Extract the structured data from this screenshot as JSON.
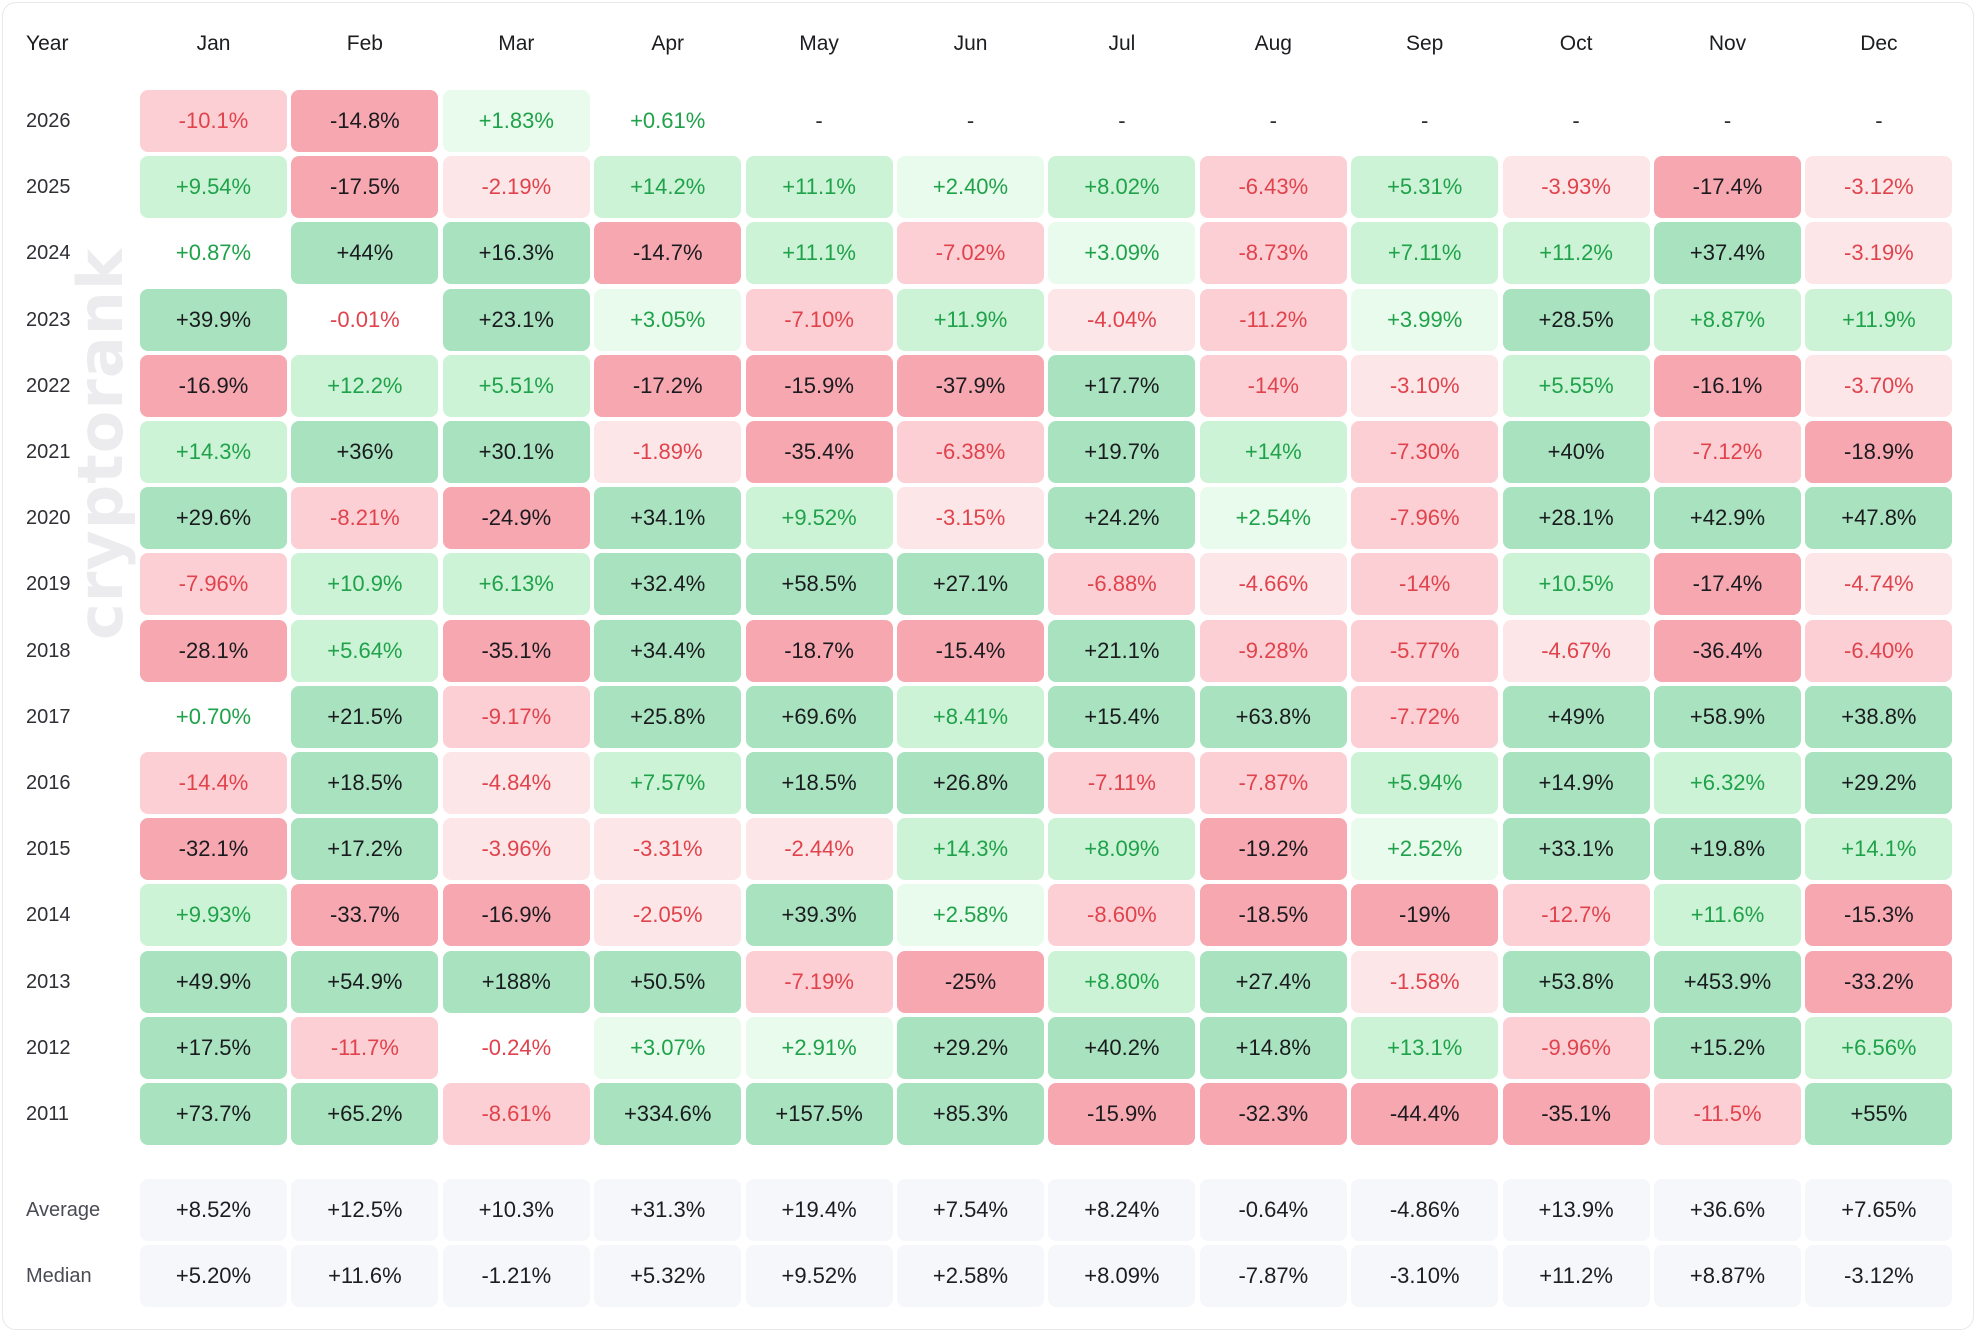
{
  "chart_data": {
    "type": "table",
    "header": {
      "year_label": "Year",
      "months": [
        "Jan",
        "Feb",
        "Mar",
        "Apr",
        "May",
        "Jun",
        "Jul",
        "Aug",
        "Sep",
        "Oct",
        "Nov",
        "Dec"
      ]
    },
    "rows": [
      {
        "year": "2026",
        "values": [
          "-10.1%",
          "-14.8%",
          "+1.83%",
          "+0.61%",
          "-",
          "-",
          "-",
          "-",
          "-",
          "-",
          "-",
          "-"
        ]
      },
      {
        "year": "2025",
        "values": [
          "+9.54%",
          "-17.5%",
          "-2.19%",
          "+14.2%",
          "+11.1%",
          "+2.40%",
          "+8.02%",
          "-6.43%",
          "+5.31%",
          "-3.93%",
          "-17.4%",
          "-3.12%"
        ]
      },
      {
        "year": "2024",
        "values": [
          "+0.87%",
          "+44%",
          "+16.3%",
          "-14.7%",
          "+11.1%",
          "-7.02%",
          "+3.09%",
          "-8.73%",
          "+7.11%",
          "+11.2%",
          "+37.4%",
          "-3.19%"
        ]
      },
      {
        "year": "2023",
        "values": [
          "+39.9%",
          "-0.01%",
          "+23.1%",
          "+3.05%",
          "-7.10%",
          "+11.9%",
          "-4.04%",
          "-11.2%",
          "+3.99%",
          "+28.5%",
          "+8.87%",
          "+11.9%"
        ]
      },
      {
        "year": "2022",
        "values": [
          "-16.9%",
          "+12.2%",
          "+5.51%",
          "-17.2%",
          "-15.9%",
          "-37.9%",
          "+17.7%",
          "-14%",
          "-3.10%",
          "+5.55%",
          "-16.1%",
          "-3.70%"
        ]
      },
      {
        "year": "2021",
        "values": [
          "+14.3%",
          "+36%",
          "+30.1%",
          "-1.89%",
          "-35.4%",
          "-6.38%",
          "+19.7%",
          "+14%",
          "-7.30%",
          "+40%",
          "-7.12%",
          "-18.9%"
        ]
      },
      {
        "year": "2020",
        "values": [
          "+29.6%",
          "-8.21%",
          "-24.9%",
          "+34.1%",
          "+9.52%",
          "-3.15%",
          "+24.2%",
          "+2.54%",
          "-7.96%",
          "+28.1%",
          "+42.9%",
          "+47.8%"
        ]
      },
      {
        "year": "2019",
        "values": [
          "-7.96%",
          "+10.9%",
          "+6.13%",
          "+32.4%",
          "+58.5%",
          "+27.1%",
          "-6.88%",
          "-4.66%",
          "-14%",
          "+10.5%",
          "-17.4%",
          "-4.74%"
        ]
      },
      {
        "year": "2018",
        "values": [
          "-28.1%",
          "+5.64%",
          "-35.1%",
          "+34.4%",
          "-18.7%",
          "-15.4%",
          "+21.1%",
          "-9.28%",
          "-5.77%",
          "-4.67%",
          "-36.4%",
          "-6.40%"
        ]
      },
      {
        "year": "2017",
        "values": [
          "+0.70%",
          "+21.5%",
          "-9.17%",
          "+25.8%",
          "+69.6%",
          "+8.41%",
          "+15.4%",
          "+63.8%",
          "-7.72%",
          "+49%",
          "+58.9%",
          "+38.8%"
        ]
      },
      {
        "year": "2016",
        "values": [
          "-14.4%",
          "+18.5%",
          "-4.84%",
          "+7.57%",
          "+18.5%",
          "+26.8%",
          "-7.11%",
          "-7.87%",
          "+5.94%",
          "+14.9%",
          "+6.32%",
          "+29.2%"
        ]
      },
      {
        "year": "2015",
        "values": [
          "-32.1%",
          "+17.2%",
          "-3.96%",
          "-3.31%",
          "-2.44%",
          "+14.3%",
          "+8.09%",
          "-19.2%",
          "+2.52%",
          "+33.1%",
          "+19.8%",
          "+14.1%"
        ]
      },
      {
        "year": "2014",
        "values": [
          "+9.93%",
          "-33.7%",
          "-16.9%",
          "-2.05%",
          "+39.3%",
          "+2.58%",
          "-8.60%",
          "-18.5%",
          "-19%",
          "-12.7%",
          "+11.6%",
          "-15.3%"
        ]
      },
      {
        "year": "2013",
        "values": [
          "+49.9%",
          "+54.9%",
          "+188%",
          "+50.5%",
          "-7.19%",
          "-25%",
          "+8.80%",
          "+27.4%",
          "-1.58%",
          "+53.8%",
          "+453.9%",
          "-33.2%"
        ]
      },
      {
        "year": "2012",
        "values": [
          "+17.5%",
          "-11.7%",
          "-0.24%",
          "+3.07%",
          "+2.91%",
          "+29.2%",
          "+40.2%",
          "+14.8%",
          "+13.1%",
          "-9.96%",
          "+15.2%",
          "+6.56%"
        ]
      },
      {
        "year": "2011",
        "values": [
          "+73.7%",
          "+65.2%",
          "-8.61%",
          "+334.6%",
          "+157.5%",
          "+85.3%",
          "-15.9%",
          "-32.3%",
          "-44.4%",
          "-35.1%",
          "-11.5%",
          "+55%"
        ]
      }
    ],
    "stats": [
      {
        "label": "Average",
        "values": [
          "+8.52%",
          "+12.5%",
          "+10.3%",
          "+31.3%",
          "+19.4%",
          "+7.54%",
          "+8.24%",
          "-0.64%",
          "-4.86%",
          "+13.9%",
          "+36.6%",
          "+7.65%"
        ]
      },
      {
        "label": "Median",
        "values": [
          "+5.20%",
          "+11.6%",
          "-1.21%",
          "+5.32%",
          "+9.52%",
          "+2.58%",
          "+8.09%",
          "-7.87%",
          "-3.10%",
          "+11.2%",
          "+8.87%",
          "-3.12%"
        ]
      }
    ],
    "colors": {
      "pos_text": "#1fa24a",
      "neg_text": "#e0434c",
      "strong_text": "#1a1b1f",
      "pos_fills": [
        "#ffffff",
        "#e9fbec",
        "#cdf3d7",
        "#a8e2bf"
      ],
      "neg_fills": [
        "#ffffff",
        "#fde6e8",
        "#fccfd4",
        "#f7a7b0"
      ],
      "stat_fill": "#f5f7fb"
    }
  },
  "watermark": "cryptorank"
}
